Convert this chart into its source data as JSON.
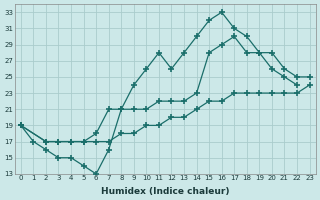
{
  "xlabel": "Humidex (Indice chaleur)",
  "bg_color": "#cce8e8",
  "grid_color": "#aacccc",
  "line_color": "#1a6e6a",
  "xlim": [
    -0.5,
    23.5
  ],
  "ylim": [
    13,
    34
  ],
  "xticks": [
    0,
    1,
    2,
    3,
    4,
    5,
    6,
    7,
    8,
    9,
    10,
    11,
    12,
    13,
    14,
    15,
    16,
    17,
    18,
    19,
    20,
    21,
    22,
    23
  ],
  "yticks": [
    13,
    15,
    17,
    19,
    21,
    23,
    25,
    27,
    29,
    31,
    33
  ],
  "line1_x": [
    0,
    1,
    2,
    3,
    4,
    5,
    6,
    7,
    8,
    9,
    10,
    11,
    12,
    13,
    14,
    15,
    16,
    17,
    18,
    19,
    20,
    21,
    22
  ],
  "line1_y": [
    19,
    17,
    16,
    15,
    15,
    14,
    13,
    16,
    21,
    24,
    26,
    28,
    26,
    28,
    30,
    32,
    33,
    31,
    30,
    28,
    26,
    25,
    24
  ],
  "line2_x": [
    0,
    2,
    3,
    4,
    5,
    6,
    7,
    8,
    9,
    10,
    11,
    12,
    13,
    14,
    15,
    16,
    17,
    18,
    19,
    20,
    21,
    22,
    23
  ],
  "line2_y": [
    19,
    17,
    17,
    17,
    17,
    18,
    21,
    21,
    21,
    21,
    22,
    22,
    22,
    23,
    28,
    29,
    30,
    28,
    28,
    28,
    26,
    25,
    25
  ],
  "line3_x": [
    0,
    2,
    3,
    4,
    5,
    6,
    7,
    8,
    9,
    10,
    11,
    12,
    13,
    14,
    15,
    16,
    17,
    18,
    19,
    20,
    21,
    22,
    23
  ],
  "line3_y": [
    19,
    17,
    17,
    17,
    17,
    17,
    17,
    18,
    18,
    19,
    19,
    20,
    20,
    21,
    22,
    22,
    23,
    23,
    23,
    23,
    23,
    23,
    24
  ]
}
